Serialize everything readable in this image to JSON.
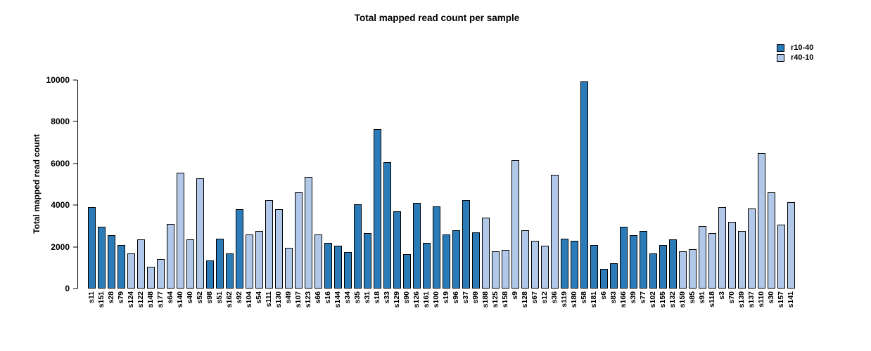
{
  "chart_data": {
    "type": "bar",
    "title": "Total mapped read count per sample",
    "xlabel": "",
    "ylabel": "Total mapped read count",
    "ylim": [
      0,
      10000
    ],
    "yticks": [
      0,
      2000,
      4000,
      6000,
      8000,
      10000
    ],
    "grid": false,
    "legend_position": "top-right",
    "bar_border_color": "#000000",
    "series": [
      {
        "name": "r10-40",
        "color": "#2b7bb9"
      },
      {
        "name": "r40-10",
        "color": "#b1c8e9"
      }
    ],
    "samples": [
      {
        "name": "s11",
        "value": 3900,
        "group": "r10-40"
      },
      {
        "name": "s151",
        "value": 2950,
        "group": "r10-40"
      },
      {
        "name": "s28",
        "value": 2550,
        "group": "r10-40"
      },
      {
        "name": "s79",
        "value": 2100,
        "group": "r10-40"
      },
      {
        "name": "s124",
        "value": 1700,
        "group": "r40-10"
      },
      {
        "name": "s122",
        "value": 2350,
        "group": "r40-10"
      },
      {
        "name": "s148",
        "value": 1050,
        "group": "r40-10"
      },
      {
        "name": "s177",
        "value": 1400,
        "group": "r40-10"
      },
      {
        "name": "s64",
        "value": 3100,
        "group": "r40-10"
      },
      {
        "name": "s140",
        "value": 5550,
        "group": "r40-10"
      },
      {
        "name": "s40",
        "value": 2350,
        "group": "r40-10"
      },
      {
        "name": "s52",
        "value": 5300,
        "group": "r40-10"
      },
      {
        "name": "s98",
        "value": 1350,
        "group": "r10-40"
      },
      {
        "name": "s51",
        "value": 2400,
        "group": "r10-40"
      },
      {
        "name": "s162",
        "value": 1700,
        "group": "r10-40"
      },
      {
        "name": "s92",
        "value": 3800,
        "group": "r10-40"
      },
      {
        "name": "s104",
        "value": 2600,
        "group": "r40-10"
      },
      {
        "name": "s54",
        "value": 2750,
        "group": "r40-10"
      },
      {
        "name": "s111",
        "value": 4250,
        "group": "r40-10"
      },
      {
        "name": "s130",
        "value": 3800,
        "group": "r40-10"
      },
      {
        "name": "s49",
        "value": 1950,
        "group": "r40-10"
      },
      {
        "name": "s107",
        "value": 4600,
        "group": "r40-10"
      },
      {
        "name": "s123",
        "value": 5350,
        "group": "r40-10"
      },
      {
        "name": "s66",
        "value": 2600,
        "group": "r40-10"
      },
      {
        "name": "s16",
        "value": 2200,
        "group": "r10-40"
      },
      {
        "name": "s144",
        "value": 2050,
        "group": "r10-40"
      },
      {
        "name": "s34",
        "value": 1750,
        "group": "r10-40"
      },
      {
        "name": "s35",
        "value": 4050,
        "group": "r10-40"
      },
      {
        "name": "s31",
        "value": 2650,
        "group": "r10-40"
      },
      {
        "name": "s18",
        "value": 7650,
        "group": "r10-40"
      },
      {
        "name": "s33",
        "value": 6050,
        "group": "r10-40"
      },
      {
        "name": "s129",
        "value": 3700,
        "group": "r10-40"
      },
      {
        "name": "s90",
        "value": 1650,
        "group": "r10-40"
      },
      {
        "name": "s126",
        "value": 4100,
        "group": "r10-40"
      },
      {
        "name": "s161",
        "value": 2200,
        "group": "r10-40"
      },
      {
        "name": "s100",
        "value": 3950,
        "group": "r10-40"
      },
      {
        "name": "s19",
        "value": 2600,
        "group": "r10-40"
      },
      {
        "name": "s96",
        "value": 2800,
        "group": "r10-40"
      },
      {
        "name": "s37",
        "value": 4250,
        "group": "r10-40"
      },
      {
        "name": "s99",
        "value": 2700,
        "group": "r10-40"
      },
      {
        "name": "s188",
        "value": 3400,
        "group": "r40-10"
      },
      {
        "name": "s125",
        "value": 1800,
        "group": "r40-10"
      },
      {
        "name": "s158",
        "value": 1850,
        "group": "r40-10"
      },
      {
        "name": "s9",
        "value": 6150,
        "group": "r40-10"
      },
      {
        "name": "s128",
        "value": 2800,
        "group": "r40-10"
      },
      {
        "name": "s67",
        "value": 2300,
        "group": "r40-10"
      },
      {
        "name": "s12",
        "value": 2050,
        "group": "r40-10"
      },
      {
        "name": "s36",
        "value": 5450,
        "group": "r40-10"
      },
      {
        "name": "s119",
        "value": 2400,
        "group": "r10-40"
      },
      {
        "name": "s180",
        "value": 2300,
        "group": "r10-40"
      },
      {
        "name": "s58",
        "value": 9950,
        "group": "r10-40"
      },
      {
        "name": "s181",
        "value": 2100,
        "group": "r10-40"
      },
      {
        "name": "s6",
        "value": 950,
        "group": "r10-40"
      },
      {
        "name": "s83",
        "value": 1200,
        "group": "r10-40"
      },
      {
        "name": "s166",
        "value": 2950,
        "group": "r10-40"
      },
      {
        "name": "s39",
        "value": 2550,
        "group": "r10-40"
      },
      {
        "name": "s77",
        "value": 2750,
        "group": "r10-40"
      },
      {
        "name": "s102",
        "value": 1700,
        "group": "r10-40"
      },
      {
        "name": "s155",
        "value": 2100,
        "group": "r10-40"
      },
      {
        "name": "s132",
        "value": 2350,
        "group": "r10-40"
      },
      {
        "name": "s159",
        "value": 1800,
        "group": "r40-10"
      },
      {
        "name": "s85",
        "value": 1900,
        "group": "r40-10"
      },
      {
        "name": "s91",
        "value": 3000,
        "group": "r40-10"
      },
      {
        "name": "s118",
        "value": 2650,
        "group": "r40-10"
      },
      {
        "name": "s3",
        "value": 3900,
        "group": "r40-10"
      },
      {
        "name": "s70",
        "value": 3200,
        "group": "r40-10"
      },
      {
        "name": "s139",
        "value": 2750,
        "group": "r40-10"
      },
      {
        "name": "s137",
        "value": 3850,
        "group": "r40-10"
      },
      {
        "name": "s110",
        "value": 6500,
        "group": "r40-10"
      },
      {
        "name": "s30",
        "value": 4600,
        "group": "r40-10"
      },
      {
        "name": "s157",
        "value": 3050,
        "group": "r40-10"
      },
      {
        "name": "s141",
        "value": 4150,
        "group": "r40-10"
      }
    ]
  }
}
